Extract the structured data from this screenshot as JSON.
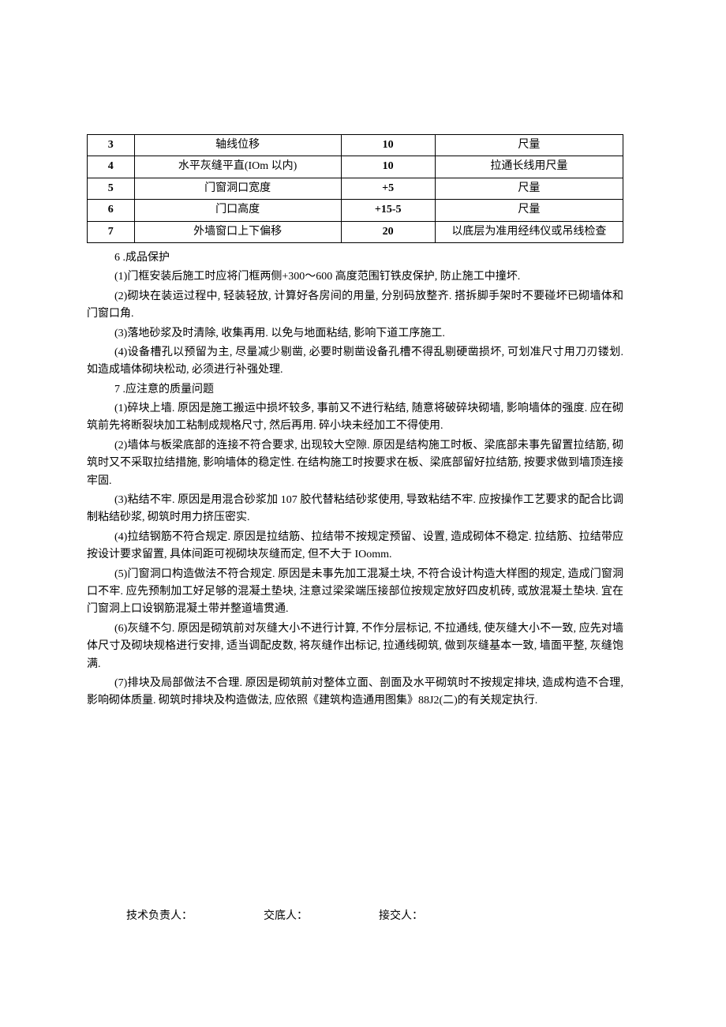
{
  "table": {
    "border_color": "#000000",
    "background_color": "#ffffff",
    "font_size": 14,
    "rows": [
      {
        "num": "3",
        "item": "轴线位移",
        "val": "10",
        "method": "尺量"
      },
      {
        "num": "4",
        "item": "水平灰缝平直(IOm 以内)",
        "val": "10",
        "method": "拉通长线用尺量"
      },
      {
        "num": "5",
        "item": "门窗洞口宽度",
        "val": "+5",
        "method": "尺量"
      },
      {
        "num": "6",
        "item": "门口高度",
        "val": "+15-5",
        "method": "尺量"
      },
      {
        "num": "7",
        "item": "外墙窗口上下偏移",
        "val": "20",
        "method": "以底层为准用经纬仪或吊线检查"
      }
    ]
  },
  "sections": [
    {
      "heading": "6 .成品保护",
      "paras": [
        "(1)门框安装后施工时应将门框两侧+300～600 高度范围钉铁皮保护, 防止施工中撞坏.",
        "(2)砌块在装运过程中, 轻装轻放, 计算好各房间的用量, 分别码放整齐. 搭拆脚手架时不要碰坏已砌墙体和门窗口角.",
        "(3)落地砂浆及时清除, 收集再用. 以免与地面粘结, 影响下道工序施工.",
        "(4)设备槽孔以预留为主, 尽量减少剔凿, 必要时剔凿设备孔槽不得乱剔硬凿损坏, 可划准尺寸用刀刃镂划. 如造成墙体砌块松动, 必须进行补强处理."
      ]
    },
    {
      "heading": "7 .应注意的质量问题",
      "paras": [
        "(1)碎块上墙. 原因是施工搬运中损坏较多, 事前又不进行粘结, 随意将破碎块砌墙, 影响墙体的强度. 应在砌筑前先将断裂块加工粘制成规格尺寸, 然后再用. 碎小块未经加工不得使用.",
        "(2)墙体与板梁底部的连接不符合要求, 出现较大空隙. 原因是结构施工时板、梁底部未事先留置拉结筋, 砌筑时又不采取拉结措施, 影响墙体的稳定性. 在结构施工时按要求在板、梁底部留好拉结筋, 按要求做到墙顶连接牢固.",
        "(3)粘结不牢. 原因是用混合砂浆加 107 胶代替粘结砂浆使用, 导致粘结不牢. 应按操作工艺要求的配合比调制粘结砂浆, 砌筑时用力挤压密实.",
        "(4)拉结钢筋不符合规定. 原因是拉结筋、拉结带不按规定预留、设置, 造成砌体不稳定. 拉结筋、拉结带应按设计要求留置, 具体间距可视砌块灰缝而定, 但不大于 IOomm.",
        "(5)门窗洞口构造做法不符合规定. 原因是未事先加工混凝土块, 不符合设计构造大样图的规定, 造成门窗洞口不牢. 应先预制加工好足够的混凝土垫块, 注意过梁梁端压接部位按规定放好四皮机砖, 或放混凝土垫块. 宜在门窗洞上口设钢筋混凝土带并整道墙贯通.",
        "(6)灰缝不匀. 原因是砌筑前对灰缝大小不进行计算, 不作分层标记, 不拉通线, 使灰缝大小不一致, 应先对墙体尺寸及砌块规格进行安排, 适当调配皮数, 将灰缝作出标记, 拉通线砌筑, 做到灰缝基本一致, 墙面平整, 灰缝饱满.",
        "(7)排块及局部做法不合理. 原因是砌筑前对整体立面、剖面及水平砌筑时不按规定排块, 造成构造不合理, 影响砌体质量. 砌筑时排块及构造做法, 应依照《建筑构造通用图集》88J2(二)的有关规定执行."
      ]
    }
  ],
  "signatures": {
    "tech": "技术负责人：",
    "handover": "交底人：",
    "receiver": "接交人："
  }
}
